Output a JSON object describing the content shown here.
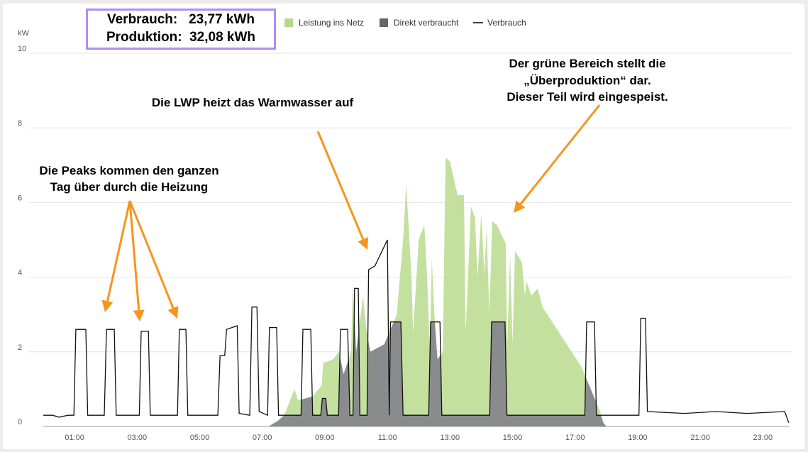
{
  "summary": {
    "consumption_line": "Verbrauch:   23,77 kWh",
    "production_line": "Produktion:  32,08 kWh"
  },
  "annotations": {
    "peaks_line1": "Die Peaks kommen den ganzen",
    "peaks_line2": "Tag über durch die Heizung",
    "lwp": "Die LWP heizt das Warmwasser auf",
    "green_line1": "Der grüne Bereich stellt die",
    "green_line2": "„Überproduktion“ dar.",
    "green_line3": "Dieser Teil wird eingespeist."
  },
  "colors": {
    "feed_in": "#c3e09f",
    "direct": "#8a8b8c",
    "consumption": "#111111",
    "arrow": "#f7941d",
    "box": "#b08cf3"
  },
  "chart_data": {
    "type": "area",
    "ylabel": "kW",
    "ylim": [
      0,
      10
    ],
    "xlim": [
      0,
      24
    ],
    "y_ticks": [
      "0",
      "2",
      "4",
      "6",
      "8",
      "10"
    ],
    "x_ticks": [
      "01:00",
      "03:00",
      "05:00",
      "07:00",
      "09:00",
      "11:00",
      "13:00",
      "15:00",
      "17:00",
      "19:00",
      "21:00",
      "23:00"
    ],
    "legend": [
      "Leistung ins Netz",
      "Direkt verbraucht",
      "Verbrauch"
    ],
    "legend_position": "top",
    "production": [
      [
        0,
        0
      ],
      [
        7.2,
        0
      ],
      [
        7.5,
        0.15
      ],
      [
        7.7,
        0.3
      ],
      [
        8.03,
        1.0
      ],
      [
        8.15,
        0.7
      ],
      [
        8.6,
        0.8
      ],
      [
        8.9,
        1.1
      ],
      [
        8.95,
        1.7
      ],
      [
        9.27,
        1.8
      ],
      [
        9.45,
        2.0
      ],
      [
        9.6,
        1.4
      ],
      [
        9.84,
        2.0
      ],
      [
        9.9,
        3.9
      ],
      [
        10.0,
        2.0
      ],
      [
        10.22,
        3.5
      ],
      [
        10.33,
        2.6
      ],
      [
        10.45,
        2.0
      ],
      [
        10.9,
        2.2
      ],
      [
        11.3,
        3.0
      ],
      [
        11.5,
        5.0
      ],
      [
        11.6,
        6.5
      ],
      [
        11.77,
        4.0
      ],
      [
        11.82,
        2.5
      ],
      [
        12.0,
        5.0
      ],
      [
        12.18,
        5.4
      ],
      [
        12.27,
        4.0
      ],
      [
        12.36,
        2.0
      ],
      [
        12.42,
        4.5
      ],
      [
        12.5,
        3.0
      ],
      [
        12.6,
        1.8
      ],
      [
        12.77,
        2.0
      ],
      [
        12.86,
        7.2
      ],
      [
        13.0,
        7.1
      ],
      [
        13.24,
        6.2
      ],
      [
        13.45,
        6.2
      ],
      [
        13.5,
        2.5
      ],
      [
        13.67,
        5.9
      ],
      [
        13.8,
        5.6
      ],
      [
        13.88,
        4.0
      ],
      [
        14.0,
        5.7
      ],
      [
        14.1,
        4.1
      ],
      [
        14.17,
        5.3
      ],
      [
        14.26,
        3.0
      ],
      [
        14.35,
        5.5
      ],
      [
        14.5,
        5.4
      ],
      [
        14.78,
        4.9
      ],
      [
        14.83,
        2.2
      ],
      [
        14.92,
        4.6
      ],
      [
        15.0,
        2.2
      ],
      [
        15.08,
        4.7
      ],
      [
        15.3,
        4.4
      ],
      [
        15.4,
        3.5
      ],
      [
        15.44,
        3.9
      ],
      [
        15.6,
        3.5
      ],
      [
        15.8,
        3.7
      ],
      [
        15.96,
        3.2
      ],
      [
        16.5,
        2.5
      ],
      [
        17.2,
        1.6
      ],
      [
        17.8,
        0.4
      ],
      [
        17.9,
        0.1
      ],
      [
        18.0,
        0
      ],
      [
        24,
        0
      ]
    ],
    "consumption": [
      [
        0,
        0.3
      ],
      [
        0.3,
        0.3
      ],
      [
        0.5,
        0.25
      ],
      [
        0.8,
        0.3
      ],
      [
        0.98,
        0.3
      ],
      [
        1.04,
        2.6
      ],
      [
        1.36,
        2.6
      ],
      [
        1.42,
        0.3
      ],
      [
        1.95,
        0.3
      ],
      [
        2.02,
        2.6
      ],
      [
        2.27,
        2.6
      ],
      [
        2.33,
        0.3
      ],
      [
        3.07,
        0.3
      ],
      [
        3.13,
        2.55
      ],
      [
        3.36,
        2.55
      ],
      [
        3.42,
        0.3
      ],
      [
        4.29,
        0.3
      ],
      [
        4.35,
        2.6
      ],
      [
        4.56,
        2.6
      ],
      [
        4.62,
        0.3
      ],
      [
        5.58,
        0.3
      ],
      [
        5.65,
        1.9
      ],
      [
        5.8,
        1.9
      ],
      [
        5.86,
        2.6
      ],
      [
        6.2,
        2.7
      ],
      [
        6.26,
        0.35
      ],
      [
        6.6,
        0.3
      ],
      [
        6.67,
        3.2
      ],
      [
        6.83,
        3.2
      ],
      [
        6.9,
        0.4
      ],
      [
        7.17,
        0.3
      ],
      [
        7.23,
        2.65
      ],
      [
        7.46,
        2.65
      ],
      [
        7.52,
        0.3
      ],
      [
        8.24,
        0.3
      ],
      [
        8.3,
        2.6
      ],
      [
        8.55,
        2.6
      ],
      [
        8.61,
        0.3
      ],
      [
        8.87,
        0.3
      ],
      [
        8.92,
        0.75
      ],
      [
        9.03,
        0.75
      ],
      [
        9.08,
        0.3
      ],
      [
        9.44,
        0.3
      ],
      [
        9.5,
        2.6
      ],
      [
        9.73,
        2.6
      ],
      [
        9.8,
        0.3
      ],
      [
        9.9,
        0.3
      ],
      [
        9.95,
        3.7
      ],
      [
        10.07,
        3.7
      ],
      [
        10.12,
        0.3
      ],
      [
        10.35,
        0.3
      ],
      [
        10.4,
        4.2
      ],
      [
        10.6,
        4.3
      ],
      [
        11.0,
        5.0
      ],
      [
        11.06,
        0.3
      ],
      [
        11.1,
        2.8
      ],
      [
        11.43,
        2.8
      ],
      [
        11.5,
        0.3
      ],
      [
        12.32,
        0.3
      ],
      [
        12.38,
        2.8
      ],
      [
        12.68,
        2.8
      ],
      [
        12.74,
        0.3
      ],
      [
        14.27,
        0.3
      ],
      [
        14.33,
        2.8
      ],
      [
        14.76,
        2.8
      ],
      [
        14.82,
        0.3
      ],
      [
        17.31,
        0.3
      ],
      [
        17.37,
        2.8
      ],
      [
        17.62,
        2.8
      ],
      [
        17.68,
        0.3
      ],
      [
        19.04,
        0.3
      ],
      [
        19.1,
        2.9
      ],
      [
        19.25,
        2.9
      ],
      [
        19.31,
        0.4
      ],
      [
        20.5,
        0.35
      ],
      [
        21.5,
        0.4
      ],
      [
        22.5,
        0.35
      ],
      [
        23.7,
        0.4
      ],
      [
        23.83,
        0.1
      ]
    ]
  }
}
